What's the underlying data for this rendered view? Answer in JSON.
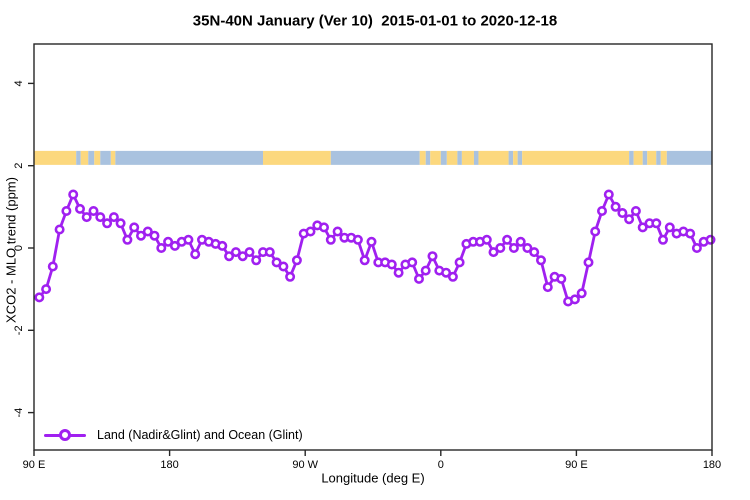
{
  "title": "35N-40N January (Ver 10)  2015-01-01 to 2020-12-18",
  "chart_data": {
    "type": "line",
    "title": "35N-40N January (Ver 10)  2015-01-01 to 2020-12-18",
    "xlabel": "Longitude (deg E)",
    "ylabel": "XCO2 - MLO trend (ppm)",
    "grid": false,
    "x_axis": {
      "range_deg": [
        90,
        540
      ],
      "note_wrap": "axis runs eastward from 90E through 180, 90W, 0, 90E to 180",
      "ticks_deg": [
        90,
        180,
        270,
        360,
        450,
        540
      ],
      "tick_labels": [
        "90 E",
        "180",
        "90 W",
        "0",
        "90 E",
        "180"
      ]
    },
    "y_axis": {
      "range": [
        -4.9,
        4.95
      ],
      "ticks": [
        -4,
        -2,
        0,
        2,
        4
      ],
      "tick_labels": [
        "-4",
        "-2",
        "0",
        "2",
        "4"
      ]
    },
    "legend": {
      "position": "bottom-left",
      "entries": [
        {
          "label": "Land (Nadir&Glint) and Ocean (Glint)",
          "color": "#A020F0",
          "marker": "open-circle"
        }
      ]
    },
    "series": [
      {
        "name": "Land (Nadir&Glint) and Ocean (Glint)",
        "color": "#A020F0",
        "marker": "open-circle",
        "x_deg": [
          93.5,
          98,
          102.5,
          107,
          111.5,
          116,
          120.5,
          125,
          129.5,
          134,
          138.5,
          143,
          147.5,
          152,
          156.5,
          161,
          165.5,
          170,
          174.5,
          179,
          183.5,
          188,
          192.5,
          197,
          201.5,
          206,
          210.5,
          215,
          219.5,
          224,
          228.5,
          233,
          237.5,
          242,
          246.5,
          251,
          255.5,
          260,
          264.5,
          269,
          273.5,
          278,
          282.5,
          287,
          291.5,
          296,
          300.5,
          305,
          309.5,
          314,
          318.5,
          323,
          327.5,
          332,
          336.5,
          341,
          345.5,
          350,
          354.5,
          359,
          363.5,
          368,
          372.5,
          377,
          381.5,
          386,
          390.5,
          395,
          399.5,
          404,
          408.5,
          413,
          417.5,
          422,
          426.5,
          431,
          435.5,
          440,
          444.5,
          449,
          453.5,
          458,
          462.5,
          467,
          471.5,
          476,
          480.5,
          485,
          489.5,
          494,
          498.5,
          503,
          507.5,
          512,
          516.5,
          521,
          525.5,
          530,
          534.5,
          539
        ],
        "y_ppm": [
          -1.2,
          -1.0,
          -0.45,
          0.45,
          0.9,
          1.3,
          0.95,
          0.75,
          0.9,
          0.75,
          0.6,
          0.75,
          0.6,
          0.2,
          0.5,
          0.3,
          0.4,
          0.3,
          0.0,
          0.15,
          0.05,
          0.15,
          0.2,
          -0.15,
          0.2,
          0.15,
          0.1,
          0.05,
          -0.2,
          -0.1,
          -0.2,
          -0.1,
          -0.3,
          -0.1,
          -0.1,
          -0.35,
          -0.45,
          -0.7,
          -0.3,
          0.35,
          0.4,
          0.55,
          0.5,
          0.2,
          0.4,
          0.25,
          0.25,
          0.2,
          -0.3,
          0.15,
          -0.35,
          -0.35,
          -0.4,
          -0.6,
          -0.4,
          -0.35,
          -0.75,
          -0.55,
          -0.2,
          -0.55,
          -0.6,
          -0.7,
          -0.35,
          0.1,
          0.15,
          0.15,
          0.2,
          -0.1,
          0.0,
          0.2,
          0.0,
          0.15,
          0.0,
          -0.1,
          -0.3,
          -0.95,
          -0.7,
          -0.75,
          -1.3,
          -1.25,
          -1.1,
          -0.35,
          0.4,
          0.9,
          1.3,
          1.0,
          0.85,
          0.7,
          0.9,
          0.5,
          0.6,
          0.6,
          0.2,
          0.5,
          0.35,
          0.4,
          0.35,
          0.0,
          0.15,
          0.2
        ]
      }
    ],
    "surface_band": {
      "description": "land/ocean strip drawn across the plot near +2.2 ppm",
      "y_ppm": [
        2.02,
        2.36
      ],
      "land_color": "#FCD87E",
      "ocean_color": "#A9C2DF",
      "segments": [
        {
          "from": 90,
          "to": 118,
          "type": "land"
        },
        {
          "from": 118,
          "to": 121,
          "type": "ocean"
        },
        {
          "from": 121,
          "to": 126,
          "type": "land"
        },
        {
          "from": 126,
          "to": 130,
          "type": "ocean"
        },
        {
          "from": 130,
          "to": 134,
          "type": "land"
        },
        {
          "from": 134,
          "to": 141,
          "type": "ocean"
        },
        {
          "from": 141,
          "to": 144,
          "type": "land"
        },
        {
          "from": 144,
          "to": 242,
          "type": "ocean"
        },
        {
          "from": 242,
          "to": 287,
          "type": "land"
        },
        {
          "from": 287,
          "to": 346,
          "type": "ocean"
        },
        {
          "from": 346,
          "to": 350,
          "type": "land"
        },
        {
          "from": 350,
          "to": 353,
          "type": "ocean"
        },
        {
          "from": 353,
          "to": 360,
          "type": "land"
        },
        {
          "from": 360,
          "to": 364,
          "type": "ocean"
        },
        {
          "from": 364,
          "to": 371,
          "type": "land"
        },
        {
          "from": 371,
          "to": 374,
          "type": "ocean"
        },
        {
          "from": 374,
          "to": 382,
          "type": "land"
        },
        {
          "from": 382,
          "to": 385,
          "type": "ocean"
        },
        {
          "from": 385,
          "to": 405,
          "type": "land"
        },
        {
          "from": 405,
          "to": 408,
          "type": "ocean"
        },
        {
          "from": 408,
          "to": 411,
          "type": "land"
        },
        {
          "from": 411,
          "to": 414,
          "type": "ocean"
        },
        {
          "from": 414,
          "to": 485,
          "type": "land"
        },
        {
          "from": 485,
          "to": 488,
          "type": "ocean"
        },
        {
          "from": 488,
          "to": 494,
          "type": "land"
        },
        {
          "from": 494,
          "to": 497,
          "type": "ocean"
        },
        {
          "from": 497,
          "to": 503,
          "type": "land"
        },
        {
          "from": 503,
          "to": 506,
          "type": "ocean"
        },
        {
          "from": 506,
          "to": 510,
          "type": "land"
        },
        {
          "from": 510,
          "to": 540,
          "type": "ocean"
        }
      ]
    }
  },
  "colors": {
    "series": "#A020F0",
    "land": "#FCD87E",
    "ocean": "#A9C2DF",
    "axis": "#262626"
  }
}
